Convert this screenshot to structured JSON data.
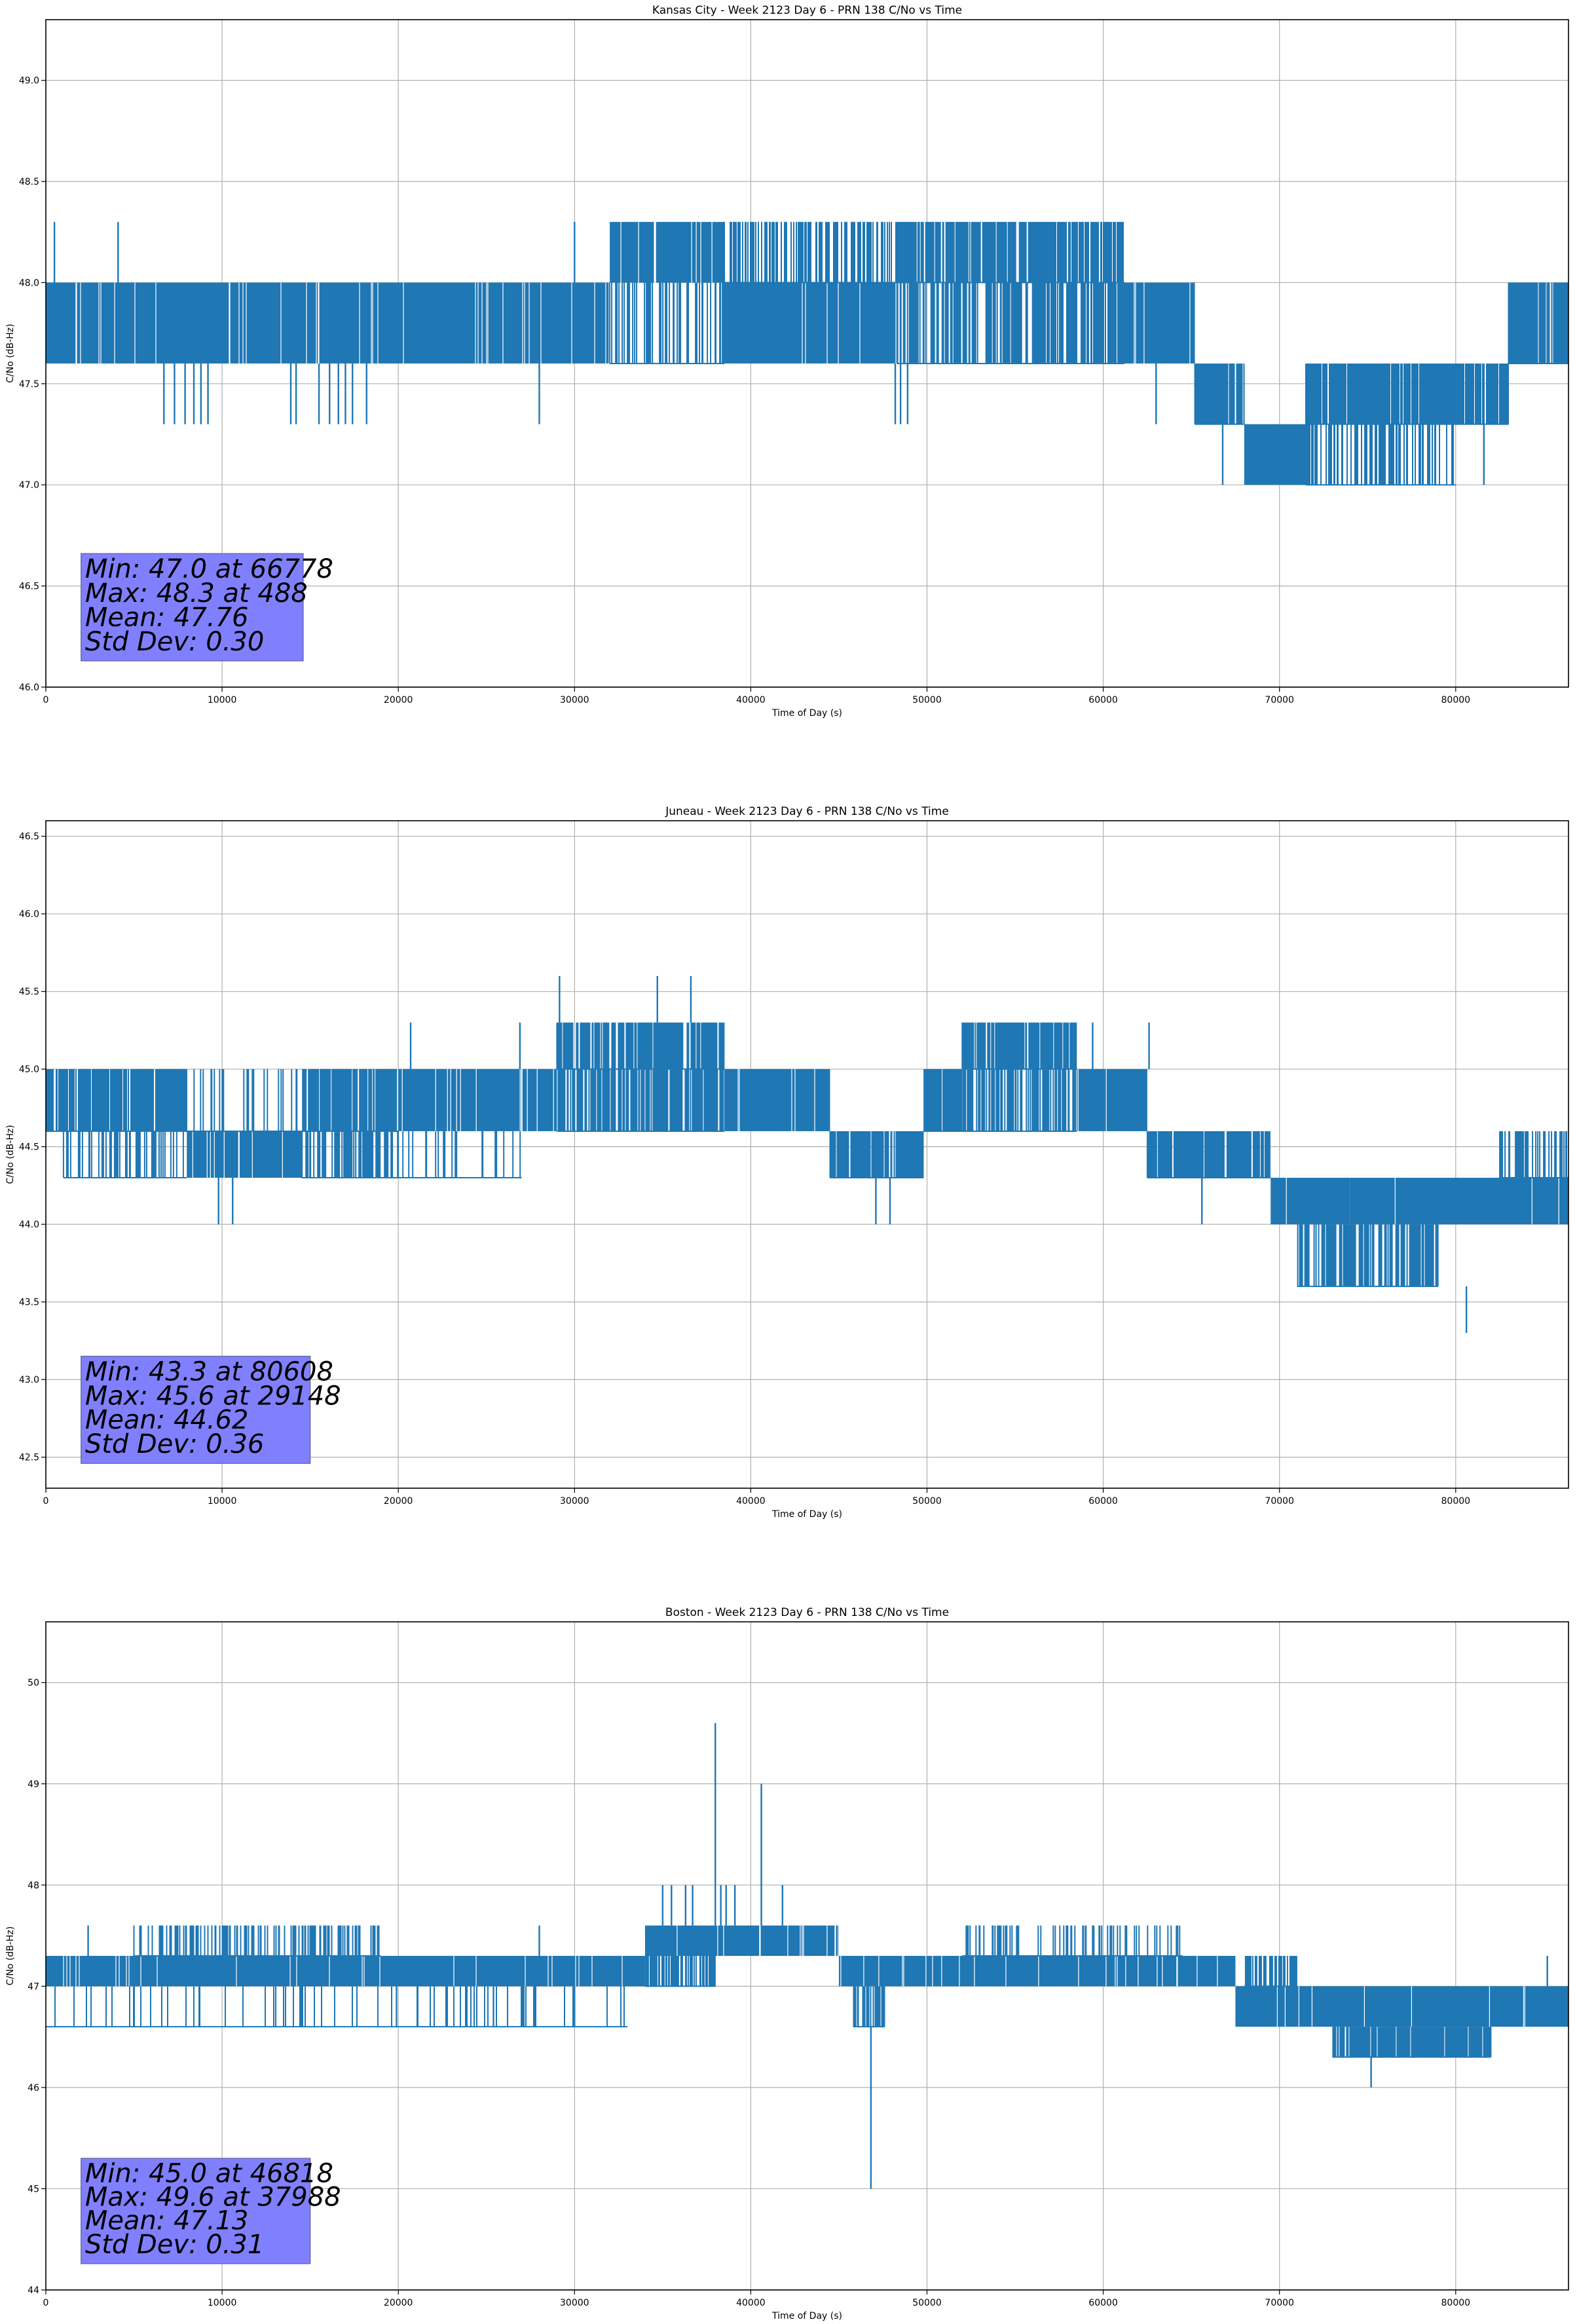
{
  "chart_data": [
    {
      "type": "line",
      "title": "Kansas City - Week 2123 Day 6 - PRN 138 C/No vs Time",
      "xlabel": "Time of Day (s)",
      "ylabel": "C/No (dB-Hz)",
      "xlim": [
        0,
        86400
      ],
      "ylim": [
        46.0,
        49.3
      ],
      "xticks": [
        0,
        10000,
        20000,
        30000,
        40000,
        50000,
        60000,
        70000,
        80000
      ],
      "yticks": [
        46.0,
        46.5,
        47.0,
        47.5,
        48.0,
        48.5,
        49.0
      ],
      "ytick_labels": [
        "46.0",
        "46.5",
        "47.0",
        "47.5",
        "48.0",
        "48.5",
        "49.0"
      ],
      "grid": true,
      "color": "#1f77b4",
      "stats": {
        "lines": [
          "Min: 47.0 at 66778",
          "Max: 48.3 at 488",
          "Mean: 47.76",
          "Std Dev: 0.30"
        ],
        "box_color": "#8080ff",
        "box_x": [
          2000,
          14600
        ],
        "box_y": [
          46.13,
          46.66
        ]
      },
      "bands": [
        {
          "x": [
            0,
            32000
          ],
          "low": 47.6,
          "high": 48.0,
          "density": 0.9
        },
        {
          "x": [
            32000,
            38500
          ],
          "low": 48.0,
          "high": 48.3,
          "density": 0.9
        },
        {
          "x": [
            32000,
            38500
          ],
          "low": 47.6,
          "high": 48.0,
          "density": 0.25
        },
        {
          "x": [
            38500,
            48300
          ],
          "low": 47.6,
          "high": 48.0,
          "density": 0.85
        },
        {
          "x": [
            38500,
            48300
          ],
          "low": 48.0,
          "high": 48.3,
          "density": 0.35
        },
        {
          "x": [
            48300,
            56300
          ],
          "low": 48.0,
          "high": 48.3,
          "density": 0.7
        },
        {
          "x": [
            48300,
            56300
          ],
          "low": 47.6,
          "high": 48.0,
          "density": 0.45
        },
        {
          "x": [
            56300,
            61200
          ],
          "low": 48.0,
          "high": 48.3,
          "density": 0.6
        },
        {
          "x": [
            56300,
            61200
          ],
          "low": 47.6,
          "high": 48.0,
          "density": 0.6
        },
        {
          "x": [
            61200,
            65200
          ],
          "low": 47.6,
          "high": 48.0,
          "density": 0.9
        },
        {
          "x": [
            65200,
            68000
          ],
          "low": 47.3,
          "high": 47.6,
          "density": 0.8
        },
        {
          "x": [
            68000,
            71500
          ],
          "low": 47.0,
          "high": 47.3,
          "density": 0.95
        },
        {
          "x": [
            71500,
            83000
          ],
          "low": 47.3,
          "high": 47.6,
          "density": 0.75
        },
        {
          "x": [
            71500,
            80000
          ],
          "low": 47.0,
          "high": 47.3,
          "density": 0.35
        },
        {
          "x": [
            83000,
            86400
          ],
          "low": 47.6,
          "high": 48.0,
          "density": 0.75
        }
      ],
      "spikes": [
        {
          "x": 488,
          "low": 48.0,
          "high": 48.3
        },
        {
          "x": 4100,
          "low": 48.0,
          "high": 48.3
        },
        {
          "x": 30000,
          "low": 48.0,
          "high": 48.3
        },
        {
          "x": 6700,
          "low": 47.3,
          "high": 47.6
        },
        {
          "x": 7300,
          "low": 47.3,
          "high": 47.6
        },
        {
          "x": 7900,
          "low": 47.3,
          "high": 47.6
        },
        {
          "x": 8400,
          "low": 47.3,
          "high": 47.6
        },
        {
          "x": 8800,
          "low": 47.3,
          "high": 47.6
        },
        {
          "x": 9200,
          "low": 47.3,
          "high": 47.6
        },
        {
          "x": 13900,
          "low": 47.3,
          "high": 47.6
        },
        {
          "x": 14200,
          "low": 47.3,
          "high": 47.6
        },
        {
          "x": 15500,
          "low": 47.3,
          "high": 47.6
        },
        {
          "x": 16100,
          "low": 47.3,
          "high": 47.6
        },
        {
          "x": 16600,
          "low": 47.3,
          "high": 47.6
        },
        {
          "x": 17000,
          "low": 47.3,
          "high": 47.6
        },
        {
          "x": 17400,
          "low": 47.3,
          "high": 47.6
        },
        {
          "x": 18200,
          "low": 47.3,
          "high": 47.6
        },
        {
          "x": 28000,
          "low": 47.3,
          "high": 47.6
        },
        {
          "x": 48200,
          "low": 47.3,
          "high": 47.6
        },
        {
          "x": 48500,
          "low": 47.3,
          "high": 47.6
        },
        {
          "x": 48900,
          "low": 47.3,
          "high": 47.6
        },
        {
          "x": 63000,
          "low": 47.3,
          "high": 47.6
        },
        {
          "x": 66778,
          "low": 47.0,
          "high": 47.3
        },
        {
          "x": 81600,
          "low": 47.0,
          "high": 47.3
        }
      ]
    },
    {
      "type": "line",
      "title": "Juneau - Week 2123 Day 6 - PRN 138 C/No vs Time",
      "xlabel": "Time of Day (s)",
      "ylabel": "C/No (dB-Hz)",
      "xlim": [
        0,
        86400
      ],
      "ylim": [
        42.3,
        46.6
      ],
      "xticks": [
        0,
        10000,
        20000,
        30000,
        40000,
        50000,
        60000,
        70000,
        80000
      ],
      "yticks": [
        42.5,
        43.0,
        43.5,
        44.0,
        44.5,
        45.0,
        45.5,
        46.0,
        46.5
      ],
      "ytick_labels": [
        "42.5",
        "43.0",
        "43.5",
        "44.0",
        "44.5",
        "45.0",
        "45.5",
        "46.0",
        "46.5"
      ],
      "grid": true,
      "color": "#1f77b4",
      "stats": {
        "lines": [
          "Min: 43.3 at 80608",
          "Max: 45.6 at 29148",
          "Mean: 44.62",
          "Std Dev: 0.36"
        ],
        "box_color": "#8080ff",
        "box_x": [
          2000,
          15000
        ],
        "box_y": [
          42.46,
          43.15
        ]
      },
      "bands": [
        {
          "x": [
            0,
            8000
          ],
          "low": 44.6,
          "high": 45.0,
          "density": 0.75
        },
        {
          "x": [
            1000,
            8000
          ],
          "low": 44.3,
          "high": 44.6,
          "density": 0.25
        },
        {
          "x": [
            8000,
            14500
          ],
          "low": 44.3,
          "high": 44.6,
          "density": 0.85
        },
        {
          "x": [
            8000,
            14500
          ],
          "low": 44.6,
          "high": 45.0,
          "density": 0.12
        },
        {
          "x": [
            14500,
            20000
          ],
          "low": 44.6,
          "high": 45.0,
          "density": 0.7
        },
        {
          "x": [
            14500,
            20000
          ],
          "low": 44.3,
          "high": 44.6,
          "density": 0.4
        },
        {
          "x": [
            20000,
            29000
          ],
          "low": 44.6,
          "high": 45.0,
          "density": 0.9
        },
        {
          "x": [
            20000,
            27000
          ],
          "low": 44.3,
          "high": 44.6,
          "density": 0.1
        },
        {
          "x": [
            29000,
            38500
          ],
          "low": 44.6,
          "high": 45.0,
          "density": 0.55
        },
        {
          "x": [
            29000,
            38500
          ],
          "low": 45.0,
          "high": 45.3,
          "density": 0.65
        },
        {
          "x": [
            38500,
            44500
          ],
          "low": 44.6,
          "high": 45.0,
          "density": 0.85
        },
        {
          "x": [
            44500,
            49800
          ],
          "low": 44.3,
          "high": 44.6,
          "density": 0.75
        },
        {
          "x": [
            49800,
            52000
          ],
          "low": 44.6,
          "high": 45.0,
          "density": 0.8
        },
        {
          "x": [
            52000,
            58500
          ],
          "low": 45.0,
          "high": 45.3,
          "density": 0.7
        },
        {
          "x": [
            52000,
            58500
          ],
          "low": 44.6,
          "high": 45.0,
          "density": 0.45
        },
        {
          "x": [
            58500,
            62500
          ],
          "low": 44.6,
          "high": 45.0,
          "density": 0.85
        },
        {
          "x": [
            62500,
            69500
          ],
          "low": 44.3,
          "high": 44.6,
          "density": 0.75
        },
        {
          "x": [
            69500,
            74000
          ],
          "low": 44.0,
          "high": 44.3,
          "density": 0.85
        },
        {
          "x": [
            71000,
            79000
          ],
          "low": 43.6,
          "high": 44.0,
          "density": 0.5
        },
        {
          "x": [
            74000,
            86400
          ],
          "low": 44.0,
          "high": 44.3,
          "density": 0.85
        },
        {
          "x": [
            82500,
            86400
          ],
          "low": 44.3,
          "high": 44.6,
          "density": 0.45
        }
      ],
      "spikes": [
        {
          "x": 29148,
          "low": 45.3,
          "high": 45.6
        },
        {
          "x": 34700,
          "low": 45.3,
          "high": 45.6
        },
        {
          "x": 36600,
          "low": 45.3,
          "high": 45.6
        },
        {
          "x": 20700,
          "low": 45.0,
          "high": 45.3
        },
        {
          "x": 26900,
          "low": 45.0,
          "high": 45.3
        },
        {
          "x": 9800,
          "low": 44.0,
          "high": 44.3
        },
        {
          "x": 10600,
          "low": 44.0,
          "high": 44.3
        },
        {
          "x": 47100,
          "low": 44.0,
          "high": 44.3
        },
        {
          "x": 47900,
          "low": 44.0,
          "high": 44.3
        },
        {
          "x": 65600,
          "low": 44.0,
          "high": 44.3
        },
        {
          "x": 80608,
          "low": 43.3,
          "high": 43.6
        },
        {
          "x": 62600,
          "low": 45.0,
          "high": 45.3
        },
        {
          "x": 59400,
          "low": 45.0,
          "high": 45.3
        }
      ]
    },
    {
      "type": "line",
      "title": "Boston - Week 2123 Day 6 - PRN 138 C/No vs Time",
      "xlabel": "Time of Day (s)",
      "ylabel": "C/No (dB-Hz)",
      "xlim": [
        0,
        86400
      ],
      "ylim": [
        44.0,
        50.6
      ],
      "xticks": [
        0,
        10000,
        20000,
        30000,
        40000,
        50000,
        60000,
        70000,
        80000
      ],
      "yticks": [
        44,
        45,
        46,
        47,
        48,
        49,
        50
      ],
      "ytick_labels": [
        "44",
        "45",
        "46",
        "47",
        "48",
        "49",
        "50"
      ],
      "grid": true,
      "color": "#1f77b4",
      "stats": {
        "lines": [
          "Min: 45.0 at 46818",
          "Max: 49.6 at 37988",
          "Mean: 47.13",
          "Std Dev: 0.31"
        ],
        "box_color": "#8080ff",
        "box_x": [
          2000,
          15000
        ],
        "box_y": [
          44.26,
          45.3
        ]
      },
      "bands": [
        {
          "x": [
            0,
            34000
          ],
          "low": 47.0,
          "high": 47.3,
          "density": 0.92
        },
        {
          "x": [
            5000,
            19000
          ],
          "low": 47.3,
          "high": 47.6,
          "density": 0.3
        },
        {
          "x": [
            0,
            33000
          ],
          "low": 46.6,
          "high": 47.0,
          "density": 0.07
        },
        {
          "x": [
            34000,
            45000
          ],
          "low": 47.3,
          "high": 47.6,
          "density": 0.85
        },
        {
          "x": [
            34000,
            38000
          ],
          "low": 47.0,
          "high": 47.3,
          "density": 0.5
        },
        {
          "x": [
            45000,
            67500
          ],
          "low": 47.0,
          "high": 47.3,
          "density": 0.9
        },
        {
          "x": [
            45800,
            47600
          ],
          "low": 46.6,
          "high": 47.0,
          "density": 0.5
        },
        {
          "x": [
            52000,
            64500
          ],
          "low": 47.3,
          "high": 47.6,
          "density": 0.2
        },
        {
          "x": [
            67500,
            86400
          ],
          "low": 46.6,
          "high": 47.0,
          "density": 0.85
        },
        {
          "x": [
            68000,
            71000
          ],
          "low": 47.0,
          "high": 47.3,
          "density": 0.5
        },
        {
          "x": [
            73000,
            82000
          ],
          "low": 46.3,
          "high": 46.6,
          "density": 0.7
        }
      ],
      "spikes": [
        {
          "x": 37988,
          "low": 47.6,
          "high": 49.6
        },
        {
          "x": 40600,
          "low": 47.6,
          "high": 49.0
        },
        {
          "x": 35000,
          "low": 47.6,
          "high": 48.0
        },
        {
          "x": 35500,
          "low": 47.6,
          "high": 48.0
        },
        {
          "x": 36300,
          "low": 47.6,
          "high": 48.0
        },
        {
          "x": 36700,
          "low": 47.6,
          "high": 48.0
        },
        {
          "x": 38300,
          "low": 47.6,
          "high": 48.0
        },
        {
          "x": 38600,
          "low": 47.6,
          "high": 48.0
        },
        {
          "x": 39100,
          "low": 47.6,
          "high": 48.0
        },
        {
          "x": 41800,
          "low": 47.6,
          "high": 48.0
        },
        {
          "x": 46818,
          "low": 45.0,
          "high": 46.6
        },
        {
          "x": 75200,
          "low": 46.0,
          "high": 46.3
        },
        {
          "x": 85200,
          "low": 47.0,
          "high": 47.3
        },
        {
          "x": 2400,
          "low": 47.3,
          "high": 47.6
        },
        {
          "x": 28000,
          "low": 47.3,
          "high": 47.6
        },
        {
          "x": 19900,
          "low": 46.6,
          "high": 47.0
        },
        {
          "x": 25400,
          "low": 46.6,
          "high": 47.0
        },
        {
          "x": 30000,
          "low": 46.6,
          "high": 47.0
        }
      ]
    }
  ]
}
